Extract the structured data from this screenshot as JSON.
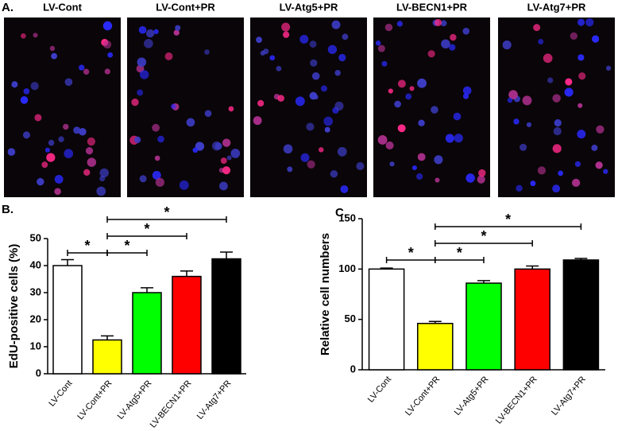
{
  "panel_a": {
    "label": "A.",
    "images": [
      "LV-Cont",
      "LV-Cont+PR",
      "LV-Atg5+PR",
      "LV-BECN1+PR",
      "LV-Atg7+PR"
    ]
  },
  "chart_data": [
    {
      "type": "bar",
      "panel_label": "B.",
      "ylabel": "EdU-positive cells (%)",
      "categories": [
        "LV-Cont",
        "LV-Cont+PR",
        "LV-Atg5+PR",
        "LV-BECN1+PR",
        "LV-Atg7+PR"
      ],
      "values": [
        40,
        12.5,
        30,
        36,
        42.5
      ],
      "errors": [
        2.2,
        1.5,
        1.8,
        2,
        2.5
      ],
      "colors": [
        "#ffffff",
        "#ffff00",
        "#00ff00",
        "#ff0000",
        "#000000"
      ],
      "ylim": [
        0,
        50
      ],
      "yticks": [
        0,
        10,
        20,
        30,
        40,
        50
      ],
      "comparisons": [
        {
          "pair": [
            "LV-Cont",
            "LV-Cont+PR"
          ],
          "label": "*"
        },
        {
          "pair": [
            "LV-Cont+PR",
            "LV-Atg5+PR"
          ],
          "label": "*"
        },
        {
          "pair": [
            "LV-Cont+PR",
            "LV-BECN1+PR"
          ],
          "label": "*"
        },
        {
          "pair": [
            "LV-Cont+PR",
            "LV-Atg7+PR"
          ],
          "label": "*"
        }
      ]
    },
    {
      "type": "bar",
      "panel_label": "C.",
      "ylabel": "Relative cell numbers",
      "categories": [
        "LV-Cont",
        "LV-Cont+PR",
        "LV-Atg5+PR",
        "LV-BECN1+PR",
        "LV-Atg7+PR"
      ],
      "values": [
        100,
        46,
        86,
        100,
        109
      ],
      "errors": [
        1,
        2,
        2.5,
        3,
        1.5
      ],
      "colors": [
        "#ffffff",
        "#ffff00",
        "#00ff00",
        "#ff0000",
        "#000000"
      ],
      "ylim": [
        0,
        150
      ],
      "yticks": [
        0,
        50,
        100,
        150
      ],
      "comparisons": [
        {
          "pair": [
            "LV-Cont",
            "LV-Cont+PR"
          ],
          "label": "*"
        },
        {
          "pair": [
            "LV-Cont+PR",
            "LV-Atg5+PR"
          ],
          "label": "*"
        },
        {
          "pair": [
            "LV-Cont+PR",
            "LV-BECN1+PR"
          ],
          "label": "*"
        },
        {
          "pair": [
            "LV-Cont+PR",
            "LV-Atg7+PR"
          ],
          "label": "*"
        }
      ]
    }
  ]
}
